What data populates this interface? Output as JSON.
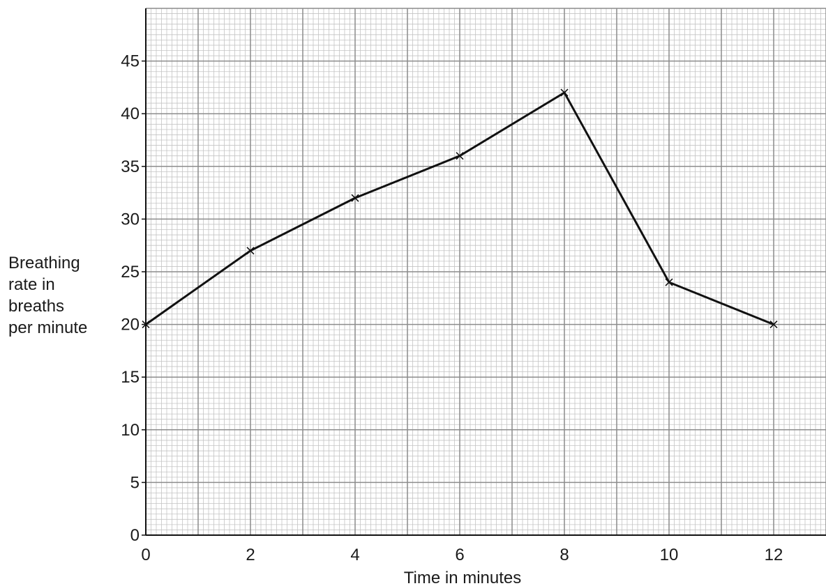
{
  "chart_data": {
    "type": "line",
    "title": "",
    "xlabel": "Time in minutes",
    "ylabel_lines": [
      "Breathing",
      "rate in",
      "breaths",
      "per minute"
    ],
    "xlim": [
      0,
      13
    ],
    "ylim": [
      0,
      50
    ],
    "x_ticks": [
      0,
      2,
      4,
      6,
      8,
      10,
      12
    ],
    "y_ticks": [
      0,
      5,
      10,
      15,
      20,
      25,
      30,
      35,
      40,
      45
    ],
    "grid": true,
    "marker": "x",
    "series": [
      {
        "x": [
          0,
          2,
          4,
          6,
          8,
          10,
          12
        ],
        "y": [
          20,
          27,
          32,
          36,
          42,
          24,
          20
        ]
      }
    ]
  },
  "colors": {
    "line": "#111111",
    "grid_major": "#8c8c8c",
    "grid_minor": "#c4c4c4",
    "axis": "#111111"
  }
}
